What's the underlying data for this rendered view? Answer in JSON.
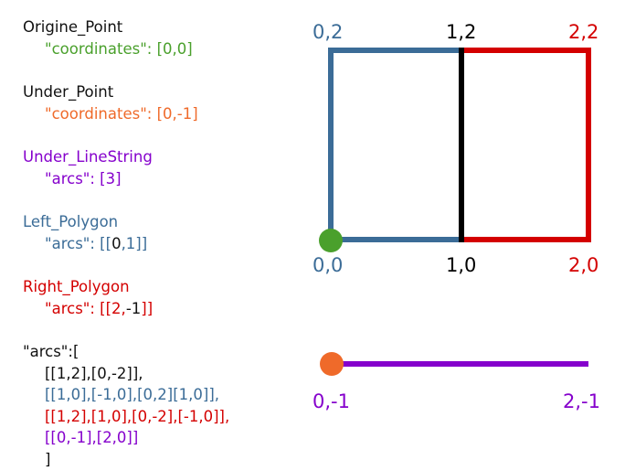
{
  "colors": {
    "blue": "#3b6c97",
    "red": "#d40000",
    "green": "#4aa02c",
    "orange": "#ef6a2a",
    "purple": "#8500cc",
    "black": "#000000"
  },
  "code": {
    "origine_point": {
      "name": "Origine_Point",
      "prop": "\"coordinates\": [0,0]"
    },
    "under_point": {
      "name": "Under_Point",
      "prop": "\"coordinates\": [0,-1]"
    },
    "under_linestring": {
      "name": "Under_LineString",
      "prop": "\"arcs\": [3]"
    },
    "left_polygon": {
      "name": "Left_Polygon",
      "prop_a": "\"arcs\": [[",
      "prop_b": "0",
      "prop_c": ",1]]"
    },
    "right_polygon": {
      "name": "Right_Polygon",
      "prop_a": "\"arcs\": [[2,",
      "prop_b": "-1",
      "prop_c": "]]"
    },
    "arcs": {
      "open": "\"arcs\":[",
      "arc0": "[[1,2],[0,-2]],",
      "arc1": "[[1,0],[-1,0],[0,2][1,0]],",
      "arc2": "[[1,2],[1,0],[0,-2],[-1,0]],",
      "arc3": "[[0,-1],[2,0]]",
      "close": "]"
    }
  },
  "diagram": {
    "labels": {
      "p02": "0,2",
      "p12": "1,2",
      "p22": "2,2",
      "p00": "0,0",
      "p10": "1,0",
      "p20": "2,0",
      "p0m1": "0,-1",
      "p2m1": "2,-1"
    }
  }
}
